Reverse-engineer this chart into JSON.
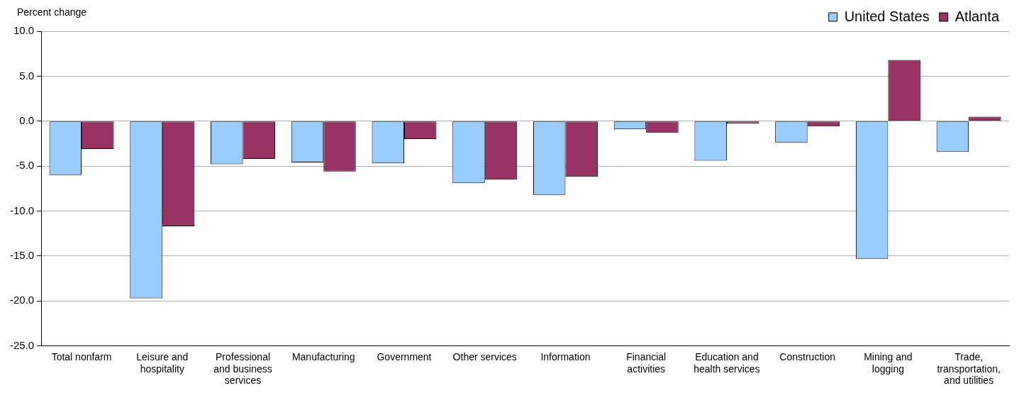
{
  "chart_data": {
    "type": "bar",
    "ylabel": "Percent change",
    "categories": [
      "Total nonfarm",
      "Leisure and hospitality",
      "Professional and business services",
      "Manufacturing",
      "Government",
      "Other services",
      "Information",
      "Financial activities",
      "Education and health services",
      "Construction",
      "Mining and logging",
      "Trade, transportation, and utilities"
    ],
    "series": [
      {
        "name": "United States",
        "color": "#99ccff",
        "values": [
          -6.0,
          -19.7,
          -4.8,
          -4.6,
          -4.7,
          -6.9,
          -8.2,
          -0.9,
          -4.4,
          -2.4,
          -15.3,
          -3.4
        ]
      },
      {
        "name": "Atlanta",
        "color": "#993366",
        "values": [
          -3.1,
          -11.7,
          -4.2,
          -5.6,
          -2.0,
          -6.5,
          -6.2,
          -1.3,
          -0.3,
          -0.6,
          6.8,
          0.5
        ]
      }
    ],
    "ylim": [
      -25,
      10
    ],
    "yticks": [
      {
        "value": -25,
        "label": "-25.0"
      },
      {
        "value": -20,
        "label": "-20.0"
      },
      {
        "value": -15,
        "label": "-15.0"
      },
      {
        "value": -10,
        "label": "-10.0"
      },
      {
        "value": -5,
        "label": "-5.0"
      },
      {
        "value": 0,
        "label": "0.0"
      },
      {
        "value": 5,
        "label": "5.0"
      },
      {
        "value": 10,
        "label": "10.0"
      }
    ],
    "grid": "y",
    "legend": "top right"
  }
}
